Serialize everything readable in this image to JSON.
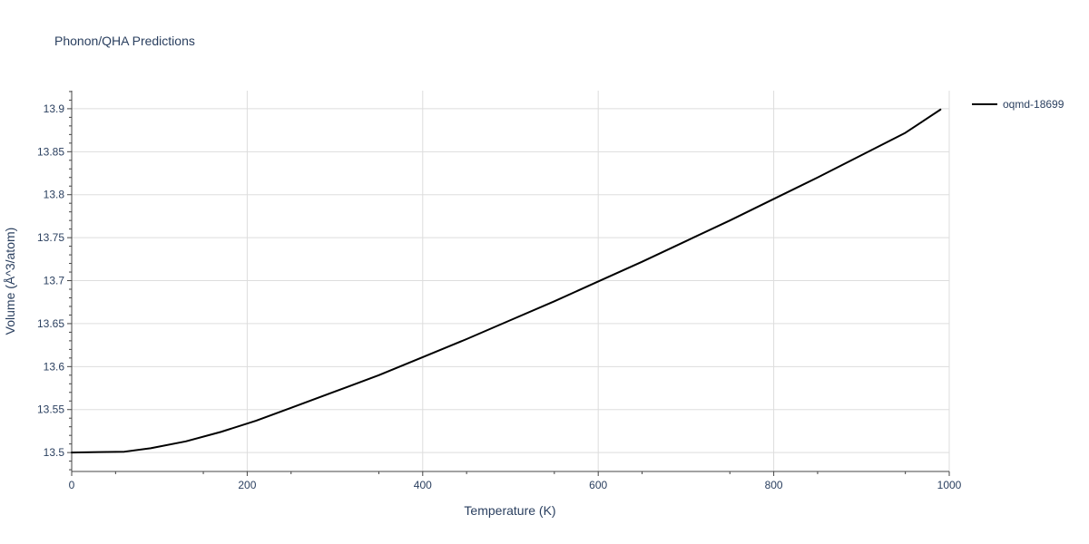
{
  "chart_data": {
    "type": "line",
    "title": "Phonon/QHA Predictions",
    "xlabel": "Temperature (K)",
    "ylabel": "Volume (Å^3/atom)",
    "xlim": [
      0,
      1000
    ],
    "ylim": [
      13.478,
      13.921
    ],
    "x_ticks": [
      0,
      200,
      400,
      600,
      800,
      1000
    ],
    "y_ticks": [
      13.5,
      13.55,
      13.6,
      13.65,
      13.7,
      13.75,
      13.8,
      13.85,
      13.9
    ],
    "grid": true,
    "legend_position": "top-right",
    "series": [
      {
        "name": "oqmd-18699",
        "color": "#000000",
        "x": [
          0,
          30,
          60,
          90,
          130,
          170,
          210,
          250,
          300,
          350,
          400,
          450,
          500,
          550,
          600,
          650,
          700,
          750,
          800,
          850,
          900,
          950,
          990
        ],
        "y": [
          13.5,
          13.5005,
          13.501,
          13.505,
          13.513,
          13.524,
          13.537,
          13.552,
          13.571,
          13.59,
          13.611,
          13.632,
          13.654,
          13.676,
          13.699,
          13.722,
          13.746,
          13.77,
          13.795,
          13.82,
          13.846,
          13.872,
          13.899
        ]
      }
    ]
  }
}
